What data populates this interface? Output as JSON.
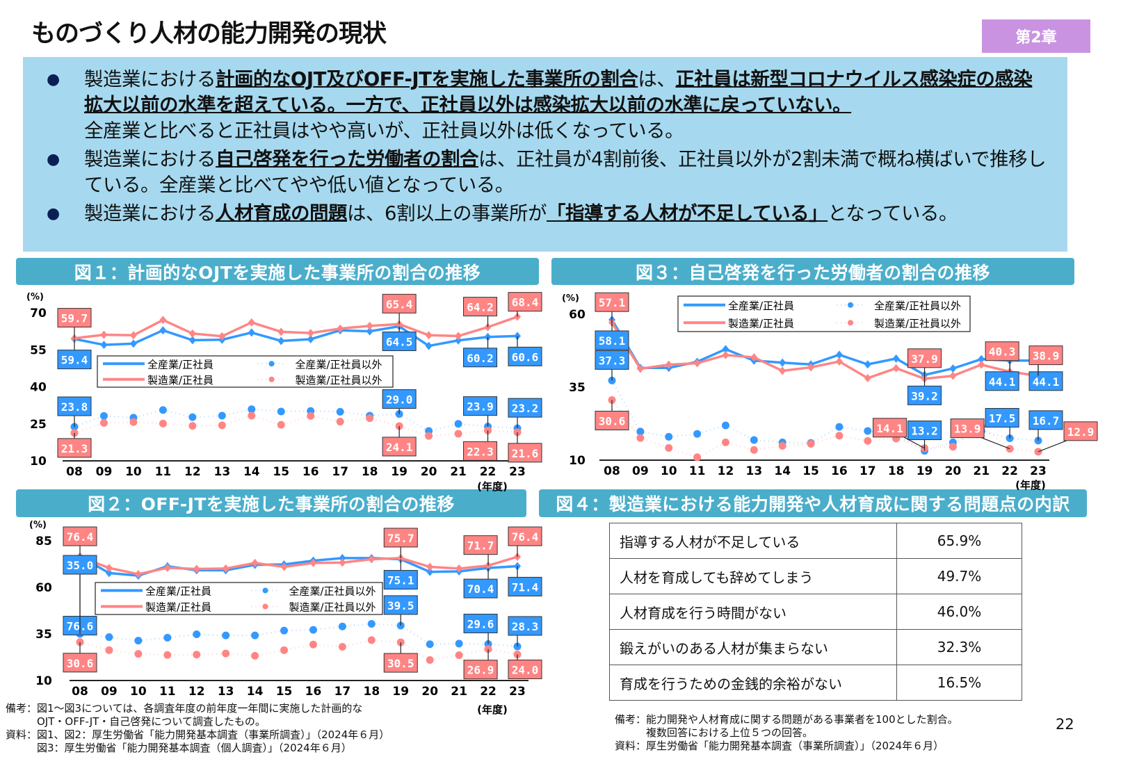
{
  "header": {
    "title": "ものづくり人材の能力開発の現状",
    "chapter": "第2章"
  },
  "summary": {
    "bullets": [
      {
        "runs": [
          {
            "t": "製造業における"
          },
          {
            "t": "計画的なOJT及びOFF-JTを実施した事業所の割合",
            "b": true
          },
          {
            "t": "は、"
          },
          {
            "t": "正社員は新型コロナウイルス感染症の感染拡大以前の水準を超えている。一方で、正社員以外は感染拡大以前の水準に戻っていない。",
            "b": true
          },
          {
            "t": "全産業と比べると正社員はやや高いが、正社員以外は低くなっている。"
          }
        ]
      },
      {
        "runs": [
          {
            "t": "製造業における"
          },
          {
            "t": "自己啓発を行った労働者の割合",
            "b": true
          },
          {
            "t": "は、正社員が4割前後、正社員以外が2割未満で概ね横ばいで推移している。全産業と比べてやや低い値となっている。"
          }
        ]
      },
      {
        "runs": [
          {
            "t": "製造業における"
          },
          {
            "t": "人材育成の問題",
            "b": true
          },
          {
            "t": "は、6割以上の事業所が"
          },
          {
            "t": "「指導する人材が不足している」",
            "b": true
          },
          {
            "t": "となっている。"
          }
        ]
      }
    ]
  },
  "colors": {
    "all_industry": "#3399ff",
    "manufacturing": "#ff8585",
    "section_header": "#4aaecb",
    "summary_bg": "#a6d9ef",
    "chapter_badge": "#c993e2"
  },
  "chart_data": [
    {
      "type": "line",
      "title": "図１：計画的なOJTを実施した事業所の割合の推移",
      "ylabel": "(%)",
      "xlabel": "(年度)",
      "ylim": [
        10,
        70
      ],
      "yticks": [
        10,
        25,
        40,
        55,
        70
      ],
      "categories": [
        "08",
        "09",
        "10",
        "11",
        "12",
        "13",
        "14",
        "15",
        "16",
        "17",
        "18",
        "19",
        "20",
        "21",
        "22",
        "23"
      ],
      "series": [
        {
          "name": "全産業/正社員",
          "style": "solid",
          "color": "#3399ff",
          "values": [
            59.4,
            57.0,
            57.5,
            62.9,
            58.9,
            59.1,
            62.0,
            58.6,
            59.3,
            62.9,
            62.5,
            64.5,
            56.6,
            58.8,
            60.2,
            60.6
          ],
          "labeled": [
            0,
            11,
            14,
            15
          ]
        },
        {
          "name": "製造業/正社員",
          "style": "solid",
          "color": "#ff8585",
          "values": [
            59.7,
            61.1,
            60.9,
            67.1,
            61.6,
            60.5,
            66.1,
            62.3,
            61.8,
            63.6,
            64.7,
            65.4,
            60.9,
            60.6,
            64.2,
            68.4
          ],
          "labeled": [
            0,
            11,
            14,
            15
          ]
        },
        {
          "name": "全産業/正社員以外",
          "style": "dotted",
          "color": "#3399ff",
          "values": [
            23.8,
            28.2,
            27.5,
            30.6,
            27.7,
            28.3,
            30.9,
            30.0,
            30.2,
            29.9,
            28.3,
            29.0,
            22.1,
            25.0,
            23.9,
            23.2
          ],
          "labeled": [
            0,
            11,
            14,
            15
          ]
        },
        {
          "name": "製造業/正社員以外",
          "style": "dotted",
          "color": "#ff8585",
          "values": [
            21.3,
            25.4,
            25.7,
            25.1,
            24.2,
            24.4,
            28.3,
            24.6,
            28.2,
            25.9,
            27.3,
            24.1,
            20.1,
            21.0,
            22.3,
            21.6
          ],
          "labeled": [
            0,
            11,
            14,
            15
          ]
        }
      ]
    },
    {
      "type": "line",
      "title": "図２：OFF-JTを実施した事業所の割合の推移",
      "ylabel": "(%)",
      "xlabel": "(年度)",
      "ylim": [
        10,
        85
      ],
      "yticks": [
        10,
        35,
        60,
        85
      ],
      "categories": [
        "08",
        "09",
        "10",
        "11",
        "12",
        "13",
        "14",
        "15",
        "16",
        "17",
        "18",
        "19",
        "20",
        "21",
        "22",
        "23"
      ],
      "series": [
        {
          "name": "全産業/正社員",
          "style": "solid",
          "color": "#3399ff",
          "values": [
            76.6,
            67.7,
            66.3,
            71.3,
            69.2,
            69.2,
            72.1,
            72.3,
            74.3,
            75.7,
            75.7,
            75.1,
            68.3,
            68.6,
            70.4,
            71.4
          ],
          "labeled": [
            0,
            11,
            14,
            15
          ]
        },
        {
          "name": "製造業/正社員",
          "style": "solid",
          "color": "#ff8585",
          "values": [
            76.4,
            70.4,
            67.1,
            70.5,
            69.9,
            70.1,
            73.1,
            71.0,
            73.1,
            73.3,
            75.1,
            75.7,
            71.0,
            70.1,
            71.7,
            76.4
          ],
          "labeled": [
            0,
            11,
            14,
            15
          ]
        },
        {
          "name": "全産業/正社員以外",
          "style": "dotted",
          "color": "#3399ff",
          "values": [
            35.0,
            33.3,
            31.4,
            33.0,
            34.8,
            34.2,
            34.2,
            36.8,
            37.2,
            39.0,
            40.4,
            39.5,
            29.5,
            29.8,
            29.6,
            28.3
          ],
          "labeled": [
            0,
            11,
            14,
            15
          ]
        },
        {
          "name": "製造業/正社員以外",
          "style": "dotted",
          "color": "#ff8585",
          "values": [
            30.6,
            26.3,
            24.3,
            23.7,
            23.9,
            24.5,
            23.3,
            26.3,
            29.3,
            28.1,
            31.7,
            30.5,
            21.0,
            23.6,
            26.9,
            24.0
          ],
          "labeled": [
            0,
            11,
            14,
            15
          ]
        }
      ]
    },
    {
      "type": "line",
      "title": "図３：自己啓発を行った労働者の割合の推移",
      "ylabel": "(%)",
      "xlabel": "(年度)",
      "ylim": [
        10,
        60
      ],
      "yticks": [
        10,
        35,
        60
      ],
      "categories": [
        "08",
        "09",
        "10",
        "11",
        "12",
        "13",
        "14",
        "15",
        "16",
        "17",
        "18",
        "19",
        "20",
        "21",
        "22",
        "23"
      ],
      "series": [
        {
          "name": "全産業/正社員",
          "style": "solid",
          "color": "#3399ff",
          "values": [
            58.1,
            41.6,
            41.6,
            43.7,
            48.0,
            44.1,
            43.4,
            42.8,
            46.1,
            42.8,
            44.8,
            39.2,
            41.4,
            44.6,
            44.1,
            44.1
          ],
          "labeled": [
            0,
            11,
            14,
            15
          ]
        },
        {
          "name": "製造業/正社員",
          "style": "solid",
          "color": "#ff8585",
          "values": [
            57.1,
            41.3,
            42.7,
            43.2,
            46.0,
            45.2,
            40.6,
            41.8,
            43.8,
            38.1,
            41.5,
            37.9,
            38.9,
            42.7,
            40.3,
            38.9
          ],
          "labeled": [
            0,
            11,
            14,
            15
          ]
        },
        {
          "name": "全産業/正社員以外",
          "style": "dotted",
          "color": "#3399ff",
          "values": [
            37.3,
            19.8,
            18.0,
            19.0,
            21.9,
            16.9,
            16.1,
            15.9,
            21.4,
            20.0,
            18.6,
            13.2,
            16.1,
            20.0,
            17.5,
            16.7
          ],
          "labeled": [
            0,
            11,
            14,
            15
          ]
        },
        {
          "name": "製造業/正社員以外",
          "style": "dotted",
          "color": "#ff8585",
          "values": [
            30.6,
            17.6,
            14.2,
            11.0,
            16.1,
            13.5,
            14.9,
            15.6,
            18.4,
            16.6,
            17.4,
            14.1,
            14.6,
            21.5,
            13.9,
            12.9
          ],
          "labeled": [
            0,
            11,
            14,
            15
          ]
        }
      ]
    }
  ],
  "fig4": {
    "title": "図４：製造業における能力開発や人材育成に関する問題点の内訳",
    "rows": [
      {
        "label": "指導する人材が不足している",
        "value": "65.9%"
      },
      {
        "label": "人材を育成しても辞めてしまう",
        "value": "49.7%"
      },
      {
        "label": "人材育成を行う時間がない",
        "value": "46.0%"
      },
      {
        "label": "鍛えがいのある人材が集まらない",
        "value": "32.3%"
      },
      {
        "label": "育成を行うための金銭的余裕がない",
        "value": "16.5%"
      }
    ]
  },
  "notes": {
    "left": "備考：図1～図3については、各調査年度の前年度一年間に実施した計画的な\n　　　OJT・OFF-JT・自己啓発について調査したもの。\n資料：図1、図2：厚生労働省「能力開発基本調査（事業所調査）」（2024年６月）\n　　　図3：厚生労働省「能力開発基本調査（個人調査）」（2024年６月）",
    "right": "備考：能力開発や人材育成に関する問題がある事業者を100とした割合。\n　　　複数回答における上位５つの回答。\n資料：厚生労働省「能力開発基本調査（事業所調査）」（2024年６月）"
  },
  "page_number": "22"
}
